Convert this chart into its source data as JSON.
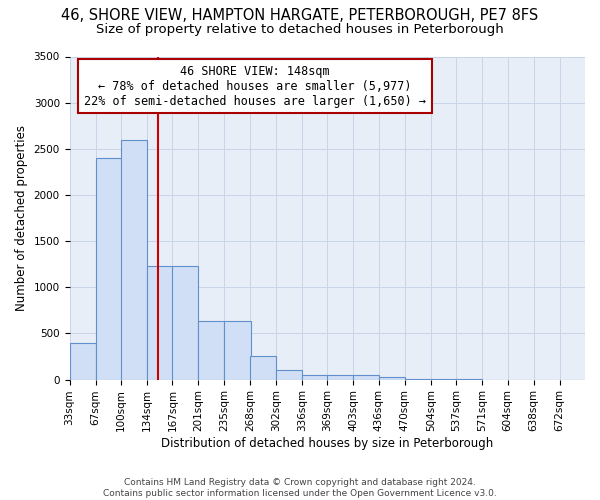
{
  "title_line1": "46, SHORE VIEW, HAMPTON HARGATE, PETERBOROUGH, PE7 8FS",
  "title_line2": "Size of property relative to detached houses in Peterborough",
  "xlabel": "Distribution of detached houses by size in Peterborough",
  "ylabel": "Number of detached properties",
  "bins": [
    33,
    67,
    100,
    134,
    167,
    201,
    235,
    268,
    302,
    336,
    369,
    403,
    436,
    470,
    504,
    537,
    571,
    604,
    638,
    672,
    705
  ],
  "counts": [
    400,
    2400,
    2600,
    1230,
    1230,
    640,
    640,
    255,
    100,
    55,
    50,
    50,
    30,
    5,
    3,
    2,
    1,
    1,
    1,
    1
  ],
  "bar_color": "#d0dff5",
  "bar_edge_color": "#6090cc",
  "bar_edge_width": 0.8,
  "grid_color": "#c8d4e8",
  "background_color": "#e8eef8",
  "red_line_x": 148,
  "red_line_color": "#cc0000",
  "annotation_text": "46 SHORE VIEW: 148sqm\n← 78% of detached houses are smaller (5,977)\n22% of semi-detached houses are larger (1,650) →",
  "annotation_box_color": "#aa0000",
  "ylim": [
    0,
    3500
  ],
  "xlim": [
    33,
    705
  ],
  "footnote": "Contains HM Land Registry data © Crown copyright and database right 2024.\nContains public sector information licensed under the Open Government Licence v3.0.",
  "title_fontsize": 10.5,
  "subtitle_fontsize": 9.5,
  "axis_label_fontsize": 8.5,
  "tick_fontsize": 7.5,
  "annotation_fontsize": 8.5,
  "footnote_fontsize": 6.5
}
